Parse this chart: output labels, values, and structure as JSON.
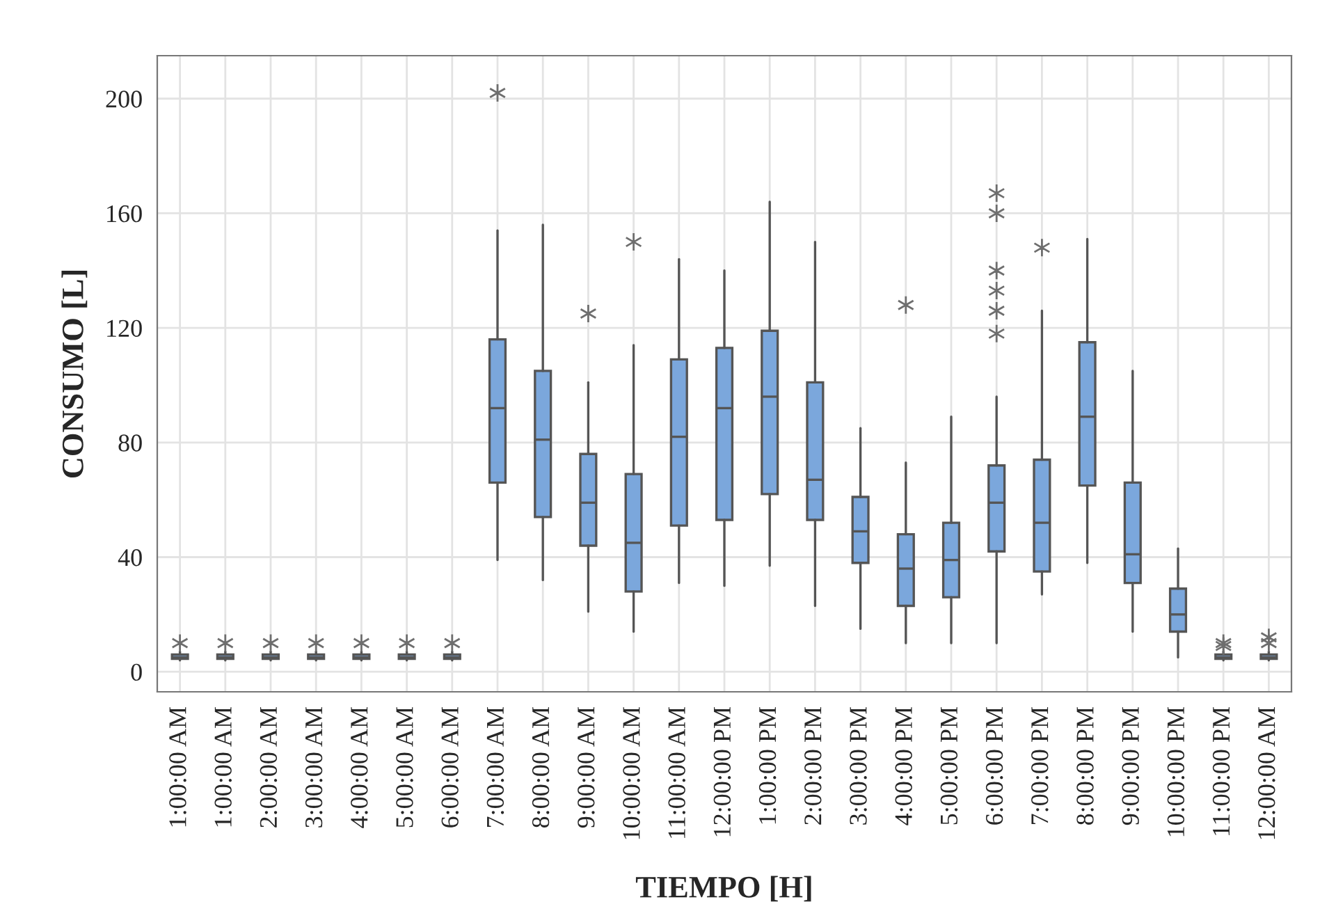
{
  "chart_data": {
    "type": "box",
    "xlabel": "TIEMPO [H]",
    "ylabel": "CONSUMO [L]",
    "categories": [
      "1:00:00 AM",
      "1:00:00 AM",
      "2:00:00 AM",
      "3:00:00 AM",
      "4:00:00 AM",
      "5:00:00 AM",
      "6:00:00 AM",
      "7:00:00 AM",
      "8:00:00 AM",
      "9:00:00 AM",
      "10:00:00 AM",
      "11:00:00 AM",
      "12:00:00 PM",
      "1:00:00 PM",
      "2:00:00 PM",
      "3:00:00 PM",
      "4:00:00 PM",
      "5:00:00 PM",
      "6:00:00 PM",
      "7:00:00 PM",
      "8:00:00 PM",
      "9:00:00 PM",
      "10:00:00 PM",
      "11:00:00 PM",
      "12:00:00 AM"
    ],
    "color": "#7ba7dc",
    "boxes": [
      {
        "low": 4,
        "q1": 4.5,
        "median": 5,
        "q3": 6,
        "high": 7,
        "outliers": [
          10
        ]
      },
      {
        "low": 4,
        "q1": 4.5,
        "median": 5,
        "q3": 6,
        "high": 7,
        "outliers": [
          10
        ]
      },
      {
        "low": 4,
        "q1": 4.5,
        "median": 5,
        "q3": 6,
        "high": 7,
        "outliers": [
          10
        ]
      },
      {
        "low": 4,
        "q1": 4.5,
        "median": 5,
        "q3": 6,
        "high": 7,
        "outliers": [
          10
        ]
      },
      {
        "low": 4,
        "q1": 4.5,
        "median": 5,
        "q3": 6,
        "high": 7,
        "outliers": [
          10
        ]
      },
      {
        "low": 4,
        "q1": 4.5,
        "median": 5,
        "q3": 6,
        "high": 7,
        "outliers": [
          10
        ]
      },
      {
        "low": 4,
        "q1": 4.5,
        "median": 5,
        "q3": 6,
        "high": 7,
        "outliers": [
          10
        ]
      },
      {
        "low": 39,
        "q1": 66,
        "median": 92,
        "q3": 116,
        "high": 154,
        "outliers": [
          202
        ]
      },
      {
        "low": 32,
        "q1": 54,
        "median": 81,
        "q3": 105,
        "high": 156
      },
      {
        "low": 21,
        "q1": 44,
        "median": 59,
        "q3": 76,
        "high": 101,
        "outliers": [
          125
        ]
      },
      {
        "low": 14,
        "q1": 28,
        "median": 45,
        "q3": 69,
        "high": 114,
        "outliers": [
          150
        ]
      },
      {
        "low": 31,
        "q1": 51,
        "median": 82,
        "q3": 109,
        "high": 144
      },
      {
        "low": 30,
        "q1": 53,
        "median": 92,
        "q3": 113,
        "high": 140
      },
      {
        "low": 37,
        "q1": 62,
        "median": 96,
        "q3": 119,
        "high": 164
      },
      {
        "low": 23,
        "q1": 53,
        "median": 67,
        "q3": 101,
        "high": 150
      },
      {
        "low": 15,
        "q1": 38,
        "median": 49,
        "q3": 61,
        "high": 85
      },
      {
        "low": 10,
        "q1": 23,
        "median": 36,
        "q3": 48,
        "high": 73,
        "outliers": [
          128
        ]
      },
      {
        "low": 10,
        "q1": 26,
        "median": 39,
        "q3": 52,
        "high": 89
      },
      {
        "low": 10,
        "q1": 42,
        "median": 59,
        "q3": 72,
        "high": 96,
        "outliers": [
          118,
          126,
          133,
          140,
          160,
          167
        ]
      },
      {
        "low": 27,
        "q1": 35,
        "median": 52,
        "q3": 74,
        "high": 126,
        "outliers": [
          148
        ]
      },
      {
        "low": 38,
        "q1": 65,
        "median": 89,
        "q3": 115,
        "high": 151
      },
      {
        "low": 14,
        "q1": 31,
        "median": 41,
        "q3": 66,
        "high": 105
      },
      {
        "low": 5,
        "q1": 14,
        "median": 20,
        "q3": 29,
        "high": 43
      },
      {
        "low": 4,
        "q1": 4.5,
        "median": 5,
        "q3": 6,
        "high": 7,
        "outliers": [
          9,
          10
        ]
      },
      {
        "low": 4,
        "q1": 4.5,
        "median": 5,
        "q3": 6,
        "high": 7,
        "outliers": [
          10,
          12
        ]
      }
    ],
    "ylim": [
      -7,
      215
    ],
    "yticks": [
      0,
      40,
      80,
      120,
      160,
      200
    ],
    "grid": true,
    "marker": "star"
  }
}
